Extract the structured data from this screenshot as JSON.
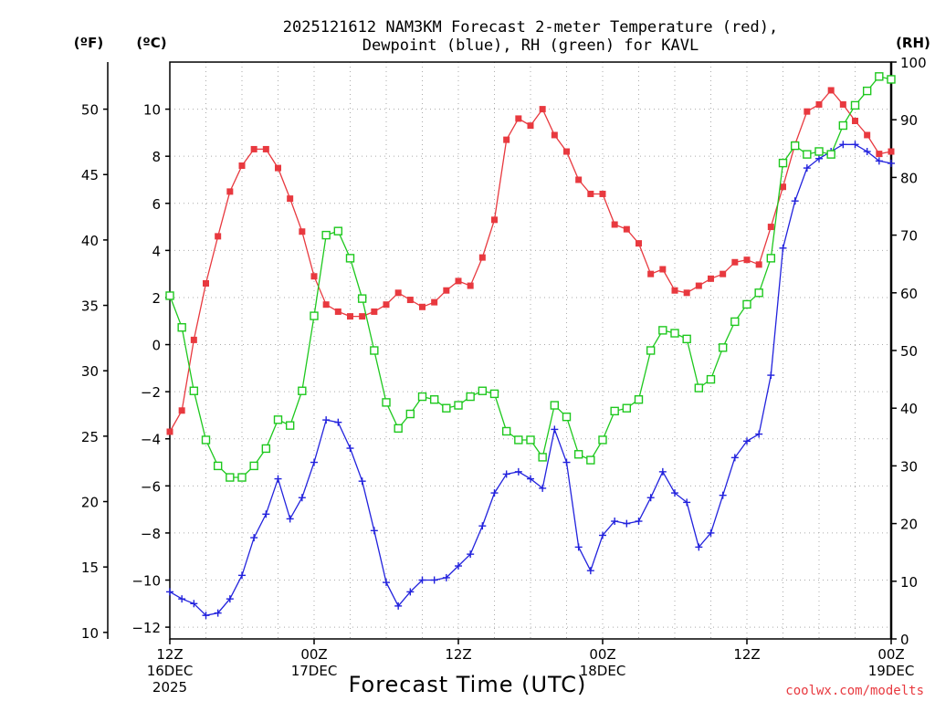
{
  "chart_data": {
    "type": "line",
    "title_line1": "2025121612 NAM3KM Forecast 2-meter Temperature (red),",
    "title_line2": "Dewpoint (blue), RH (green) for KAVL",
    "xlabel": "Forecast Time (UTC)",
    "credit": "coolwx.com/modelts",
    "left_outer_unit": "(ºF)",
    "left_inner_unit": "(ºC)",
    "right_unit": "(RH)",
    "x_ticks": [
      {
        "hour": 0,
        "lines": [
          "12Z",
          "16DEC",
          "2025"
        ]
      },
      {
        "hour": 12,
        "lines": [
          "00Z",
          "17DEC"
        ]
      },
      {
        "hour": 24,
        "lines": [
          "12Z"
        ]
      },
      {
        "hour": 36,
        "lines": [
          "00Z",
          "18DEC"
        ]
      },
      {
        "hour": 48,
        "lines": [
          "12Z"
        ]
      },
      {
        "hour": 60,
        "lines": [
          "00Z",
          "19DEC"
        ]
      }
    ],
    "xlim": [
      0,
      60
    ],
    "ylim_c": [
      -12.5,
      12
    ],
    "ylim_rh": [
      0,
      100
    ],
    "c_ticks": [
      "-12",
      "-10",
      "-8",
      "-6",
      "-4",
      "-2",
      "0",
      "2",
      "4",
      "6",
      "8",
      "10"
    ],
    "f_ticks": [
      "10",
      "15",
      "20",
      "25",
      "30",
      "35",
      "40",
      "45",
      "50"
    ],
    "rh_ticks": [
      "0",
      "10",
      "20",
      "30",
      "40",
      "50",
      "60",
      "70",
      "80",
      "90",
      "100"
    ],
    "series": [
      {
        "name": "2-meter Temperature",
        "unit": "C",
        "color": "#e8393f",
        "marker": "filled-square",
        "values": [
          -3.7,
          -2.8,
          0.2,
          2.6,
          4.6,
          6.5,
          7.6,
          8.3,
          8.3,
          7.5,
          6.2,
          4.8,
          2.9,
          1.7,
          1.4,
          1.2,
          1.2,
          1.4,
          1.7,
          2.2,
          1.9,
          1.6,
          1.8,
          2.3,
          2.7,
          2.5,
          3.7,
          5.3,
          8.7,
          9.6,
          9.3,
          10.0,
          8.9,
          8.2,
          7.0,
          6.4,
          6.4,
          5.1,
          4.9,
          4.3,
          3.0,
          3.2,
          2.3,
          2.2,
          2.5,
          2.8,
          3.0,
          3.5,
          3.6,
          3.4,
          5.0,
          6.7,
          8.5,
          9.9,
          10.2,
          10.8,
          10.2,
          9.5,
          8.9,
          8.1,
          8.2
        ]
      },
      {
        "name": "Dewpoint",
        "unit": "C",
        "color": "#2222dd",
        "marker": "plus",
        "values": [
          -10.5,
          -10.8,
          -11.0,
          -11.5,
          -11.4,
          -10.8,
          -9.8,
          -8.2,
          -7.2,
          -5.7,
          -7.4,
          -6.5,
          -5.0,
          -3.2,
          -3.3,
          -4.4,
          -5.8,
          -7.9,
          -10.1,
          -11.1,
          -10.5,
          -10.0,
          -10.0,
          -9.9,
          -9.4,
          -8.9,
          -7.7,
          -6.3,
          -5.5,
          -5.4,
          -5.7,
          -6.1,
          -3.6,
          -5.0,
          -8.6,
          -9.6,
          -8.1,
          -7.5,
          -7.6,
          -7.5,
          -6.5,
          -5.4,
          -6.3,
          -6.7,
          -8.6,
          -8.0,
          -6.4,
          -4.8,
          -4.1,
          -3.8,
          -1.3,
          4.1,
          6.1,
          7.5,
          7.9,
          8.2,
          8.5,
          8.5,
          8.2,
          7.8,
          7.7
        ]
      },
      {
        "name": "RH",
        "unit": "%",
        "color": "#1ec81e",
        "marker": "open-square",
        "values": [
          59.5,
          54,
          43,
          34.5,
          30,
          28,
          28,
          30,
          33,
          38,
          37,
          43,
          56,
          70,
          70.7,
          66,
          59,
          50,
          41,
          36.5,
          39,
          42,
          41.5,
          40,
          40.5,
          42,
          43,
          42.5,
          36,
          34.5,
          34.5,
          31.5,
          40.5,
          38.5,
          32,
          31,
          34.5,
          39.5,
          40,
          41.5,
          50,
          53.5,
          53,
          52,
          43.5,
          45,
          50.5,
          55,
          58,
          60,
          66,
          82.5,
          85.5,
          84,
          84.5,
          84,
          89,
          92.5,
          95,
          97.5,
          97
        ]
      }
    ]
  }
}
